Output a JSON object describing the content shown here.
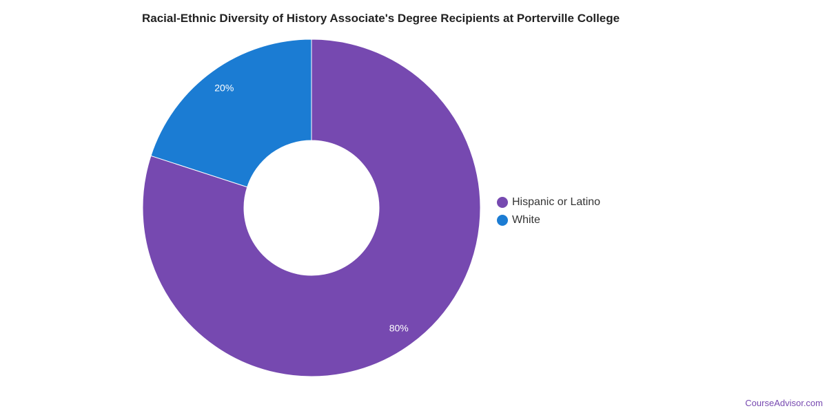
{
  "chart_data": {
    "type": "pie",
    "title": "Racial-Ethnic Diversity of History Associate's Degree Recipients at Porterville College",
    "donut": true,
    "categories": [
      "Hispanic or Latino",
      "White"
    ],
    "values": [
      80,
      20
    ],
    "value_labels": [
      "80%",
      "20%"
    ],
    "colors": [
      "#7649b0",
      "#1b7cd3"
    ],
    "legend_position": "right"
  },
  "footer": {
    "credit": "CourseAdvisor.com"
  }
}
